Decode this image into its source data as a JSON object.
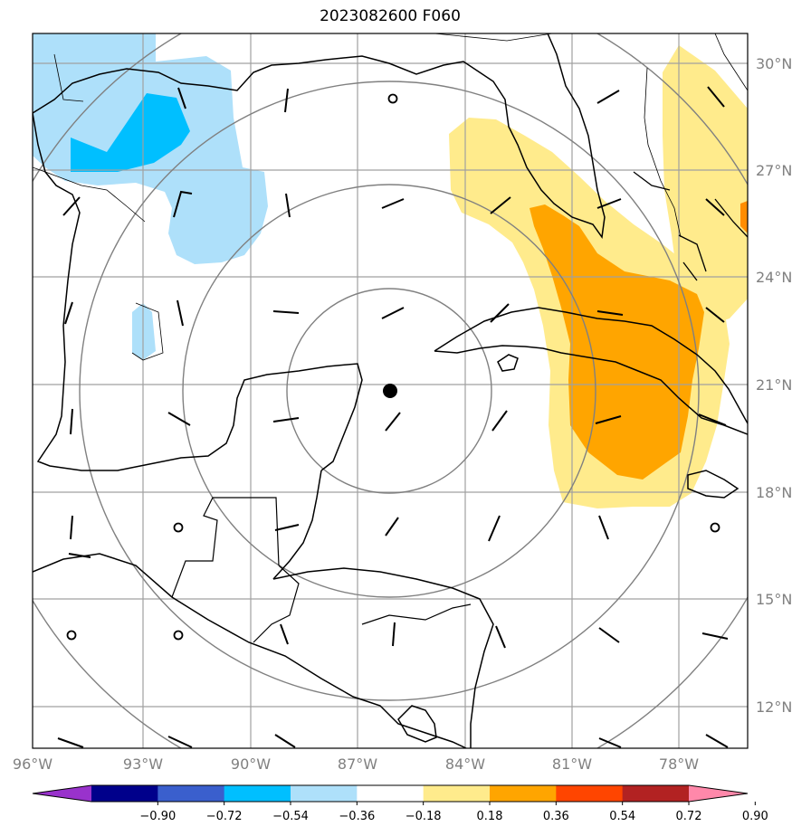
{
  "title": "2023082600 F060",
  "map": {
    "lon_labels": [
      "96°W",
      "93°W",
      "90°W",
      "87°W",
      "84°W",
      "81°W",
      "78°W"
    ],
    "lat_labels": [
      "30°N",
      "27°N",
      "24°N",
      "21°N",
      "18°N",
      "15°N",
      "12°N"
    ],
    "center": {
      "lon": -86.1,
      "lat": 20.8
    },
    "colors": {
      "coastline": "#000000",
      "gridline": "#a0a0a0",
      "range_ring": "#808080",
      "light_blue": "#aee0fa",
      "blue": "#00bfff",
      "light_yellow": "#ffeb8c",
      "orange": "#ffa500",
      "dark_orange": "#ff8c00"
    }
  },
  "colorbar": {
    "ticks": [
      "−0.90",
      "−0.72",
      "−0.54",
      "−0.36",
      "−0.18",
      "0.18",
      "0.36",
      "0.54",
      "0.72",
      "0.90"
    ],
    "colors": [
      "#9932cc",
      "#00008b",
      "#3a5fcd",
      "#00bfff",
      "#aee0fa",
      "#ffffff",
      "#ffeb8c",
      "#ffa500",
      "#ff4500",
      "#b22222",
      "#ff88aa"
    ]
  }
}
